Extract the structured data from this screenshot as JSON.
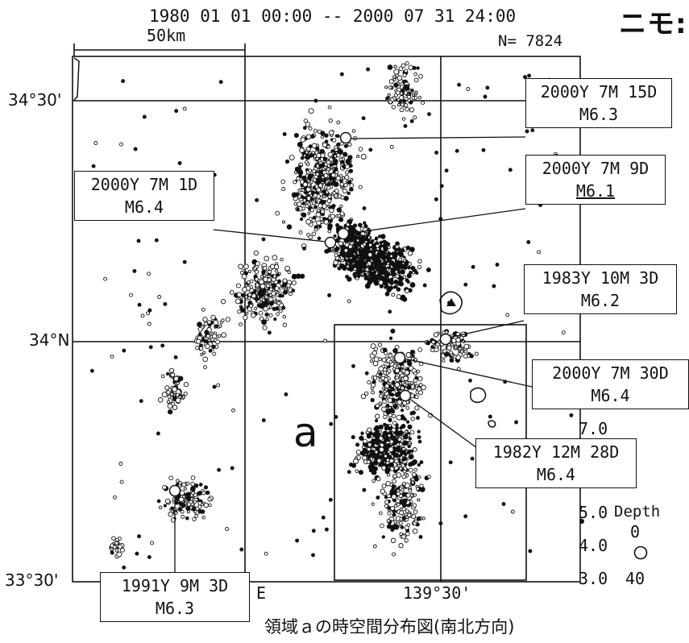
{
  "header": {
    "time_range": "1980 01 01 00:00 -- 2000 07 31 24:00",
    "scale": "50km",
    "count": "N= 7824",
    "corner_text": "ニモ:"
  },
  "axes": {
    "lat_3430": "34°30'",
    "lat_34": "34°N",
    "lat_3330": "33°30'",
    "lon_13930": "139°30'",
    "lon_e": "E"
  },
  "area_label": "a",
  "legend": {
    "mags": [
      "7.0",
      "6.0",
      "5.0",
      "4.0",
      "3.0"
    ],
    "depth_title": "Depth",
    "depth_0": "0",
    "depth_40": "40"
  },
  "events": [
    {
      "id": "e1",
      "line1": "2000Y 7M 15D",
      "line2": "M6.3"
    },
    {
      "id": "e2",
      "line1": "2000Y 7M 9D",
      "line2": "M6.1"
    },
    {
      "id": "e3",
      "line1": "2000Y 7M 1D",
      "line2": "M6.4"
    },
    {
      "id": "e4",
      "line1": "1983Y 10M 3D",
      "line2": "M6.2"
    },
    {
      "id": "e5",
      "line1": "2000Y 7M 30D",
      "line2": "M6.4"
    },
    {
      "id": "e6",
      "line1": "1982Y 12M 28D",
      "line2": "M6.4"
    },
    {
      "id": "e7",
      "line1": "1991Y 9M 3D",
      "line2": "M6.3"
    }
  ],
  "caption": "領域ａの時空間分布図(南北方向)"
}
